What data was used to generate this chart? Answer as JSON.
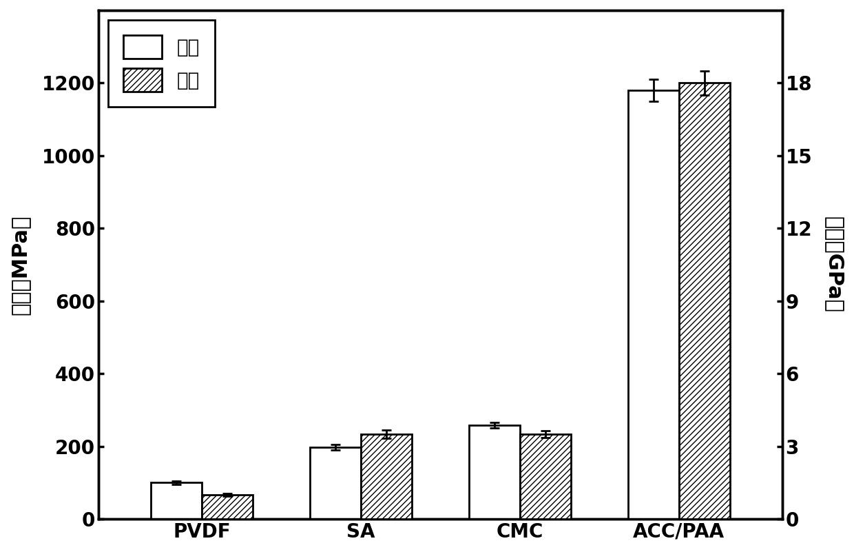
{
  "categories": [
    "PVDF",
    "SA",
    "CMC",
    "ACC/PAA"
  ],
  "hardness_values": [
    100,
    197,
    258,
    1180
  ],
  "hardness_errors": [
    5,
    8,
    8,
    30
  ],
  "modulus_values": [
    1.0,
    3.5,
    3.5,
    18.0
  ],
  "modulus_errors": [
    0.07,
    0.17,
    0.14,
    0.5
  ],
  "ylabel_left": "硬度（MPa）",
  "ylabel_right": "模量（GPa）",
  "ylim_left": [
    0,
    1400
  ],
  "ylim_right": [
    0,
    21.0
  ],
  "yticks_left": [
    0,
    200,
    400,
    600,
    800,
    1000,
    1200
  ],
  "yticks_right": [
    0,
    3,
    6,
    9,
    12,
    15,
    18
  ],
  "legend_labels": [
    "硬度",
    "模量"
  ],
  "bar_width": 0.32,
  "figsize": [
    12.4,
    8.01
  ],
  "dpi": 100,
  "fontsize_ticks": 20,
  "fontsize_labels": 22,
  "fontsize_legend": 20,
  "bar_color_solid": "#ffffff",
  "bar_edgecolor": "#000000",
  "hatch_pattern": "////",
  "linewidth": 2.0,
  "spine_linewidth": 2.5
}
